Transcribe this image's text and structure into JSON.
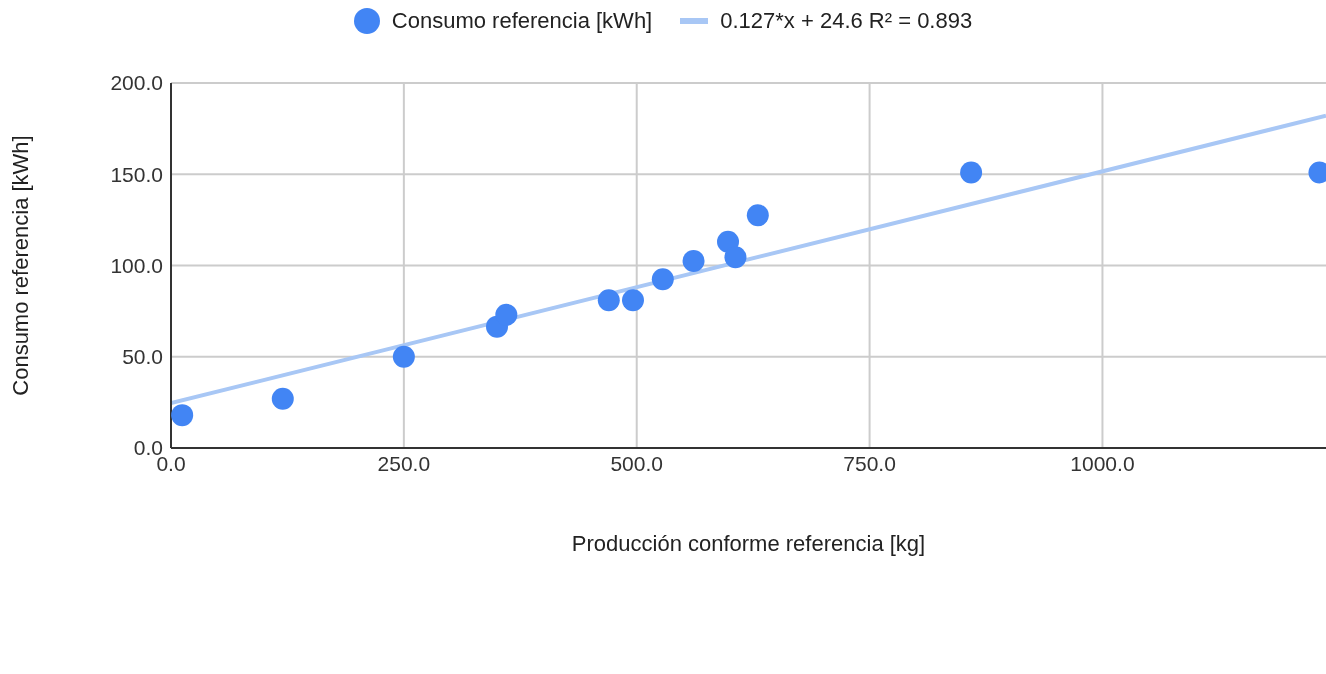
{
  "chart_data": {
    "type": "scatter",
    "xlabel": "Producción conforme referencia [kg]",
    "ylabel": "Consumo referencia [kWh]",
    "series": [
      {
        "name": "Consumo referencia [kWh]",
        "marker": "circle",
        "color": "#4285f4",
        "x": [
          12,
          120,
          250,
          350,
          360,
          470,
          496,
          528,
          561,
          598,
          606,
          630,
          859,
          1233
        ],
        "values": [
          18,
          27,
          50,
          66.5,
          73,
          81,
          81,
          92.5,
          102.5,
          113,
          104.5,
          127.5,
          151,
          151
        ]
      },
      {
        "name": "0.127*x + 24.6 R² = 0.893",
        "type": "line",
        "marker": "none",
        "color": "#a8c7f5",
        "x": [
          0,
          1240
        ],
        "values": [
          24.6,
          182.1
        ]
      }
    ],
    "xlim": [
      0,
      1240
    ],
    "xticks": [
      {
        "value": 0,
        "label": "0.0"
      },
      {
        "value": 250,
        "label": "250.0"
      },
      {
        "value": 500,
        "label": "500.0"
      },
      {
        "value": 750,
        "label": "750.0"
      },
      {
        "value": 1000,
        "label": "1000.0"
      }
    ],
    "ylim": [
      0,
      200
    ],
    "yticks": [
      {
        "value": 0,
        "label": "0.0"
      },
      {
        "value": 50,
        "label": "50.0"
      },
      {
        "value": 100,
        "label": "100.0"
      },
      {
        "value": 150,
        "label": "150.0"
      },
      {
        "value": 200,
        "label": "200.0"
      }
    ],
    "grid": true,
    "legend": "top"
  }
}
